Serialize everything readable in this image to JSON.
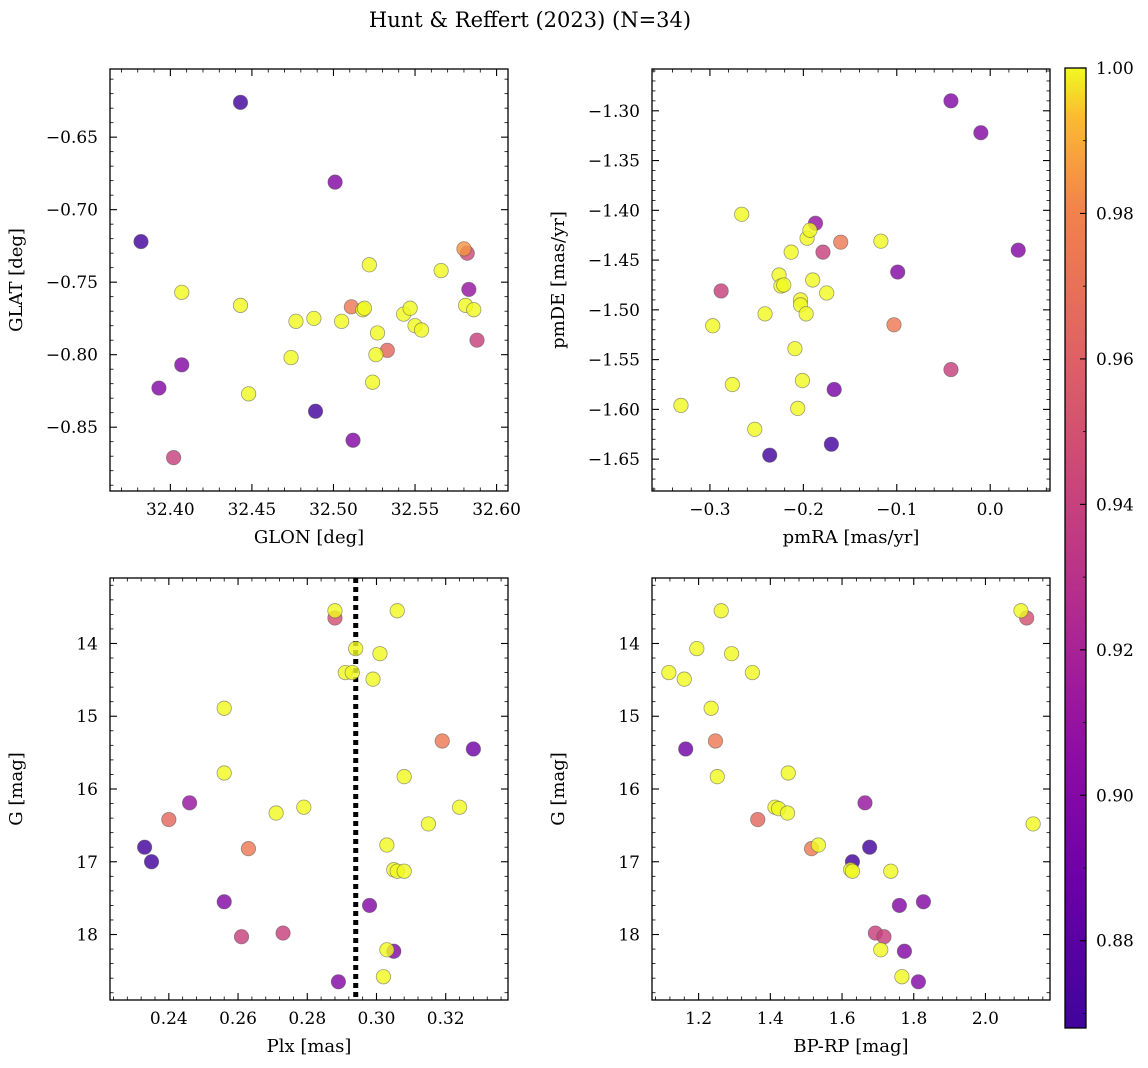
{
  "title": "Hunt & Reffert (2023) (N=34)",
  "colors": {
    "colormap": "plasma",
    "reference_line": "#000000"
  },
  "colorbar": {
    "min": 0.868,
    "max": 1.0,
    "ticks": [
      0.88,
      0.9,
      0.92,
      0.94,
      0.96,
      0.98,
      1.0
    ],
    "tick_labels": [
      "0.88",
      "0.90",
      "0.92",
      "0.94",
      "0.96",
      "0.98",
      "1.00"
    ]
  },
  "chart_data": [
    {
      "type": "scatter",
      "xlabel": "GLON [deg]",
      "ylabel": "GLAT [deg]",
      "xlim": [
        32.363,
        32.607
      ],
      "ylim": [
        -0.894,
        -0.603
      ],
      "invert_y": false,
      "xticks": [
        32.4,
        32.45,
        32.5,
        32.55,
        32.6
      ],
      "xtick_labels": [
        "32.40",
        "32.45",
        "32.50",
        "32.55",
        "32.60"
      ],
      "yticks": [
        -0.85,
        -0.8,
        -0.75,
        -0.7,
        -0.65
      ],
      "ytick_labels": [
        "−0.85",
        "−0.80",
        "−0.75",
        "−0.70",
        "−0.65"
      ],
      "points": [
        {
          "x": 32.443,
          "y": -0.626,
          "c": 0.87
        },
        {
          "x": 32.382,
          "y": -0.722,
          "c": 0.87
        },
        {
          "x": 32.489,
          "y": -0.839,
          "c": 0.87
        },
        {
          "x": 32.501,
          "y": -0.681,
          "c": 0.9
        },
        {
          "x": 32.393,
          "y": -0.823,
          "c": 0.9
        },
        {
          "x": 32.407,
          "y": -0.807,
          "c": 0.9
        },
        {
          "x": 32.512,
          "y": -0.859,
          "c": 0.9
        },
        {
          "x": 32.583,
          "y": -0.755,
          "c": 0.91
        },
        {
          "x": 32.402,
          "y": -0.871,
          "c": 0.94
        },
        {
          "x": 32.588,
          "y": -0.79,
          "c": 0.94
        },
        {
          "x": 32.582,
          "y": -0.73,
          "c": 0.945
        },
        {
          "x": 32.533,
          "y": -0.797,
          "c": 0.965
        },
        {
          "x": 32.511,
          "y": -0.767,
          "c": 0.975
        },
        {
          "x": 32.58,
          "y": -0.727,
          "c": 0.985
        },
        {
          "x": 32.407,
          "y": -0.757,
          "c": 1.0
        },
        {
          "x": 32.443,
          "y": -0.766,
          "c": 1.0
        },
        {
          "x": 32.448,
          "y": -0.827,
          "c": 1.0
        },
        {
          "x": 32.474,
          "y": -0.802,
          "c": 1.0
        },
        {
          "x": 32.477,
          "y": -0.777,
          "c": 1.0
        },
        {
          "x": 32.488,
          "y": -0.775,
          "c": 1.0
        },
        {
          "x": 32.505,
          "y": -0.777,
          "c": 1.0
        },
        {
          "x": 32.518,
          "y": -0.769,
          "c": 1.0
        },
        {
          "x": 32.519,
          "y": -0.768,
          "c": 1.0
        },
        {
          "x": 32.522,
          "y": -0.738,
          "c": 1.0
        },
        {
          "x": 32.524,
          "y": -0.819,
          "c": 1.0
        },
        {
          "x": 32.526,
          "y": -0.8,
          "c": 1.0
        },
        {
          "x": 32.527,
          "y": -0.785,
          "c": 1.0
        },
        {
          "x": 32.543,
          "y": -0.772,
          "c": 1.0
        },
        {
          "x": 32.547,
          "y": -0.768,
          "c": 1.0
        },
        {
          "x": 32.55,
          "y": -0.78,
          "c": 1.0
        },
        {
          "x": 32.554,
          "y": -0.783,
          "c": 1.0
        },
        {
          "x": 32.566,
          "y": -0.742,
          "c": 1.0
        },
        {
          "x": 32.581,
          "y": -0.766,
          "c": 1.0
        },
        {
          "x": 32.586,
          "y": -0.769,
          "c": 1.0
        }
      ]
    },
    {
      "type": "scatter",
      "xlabel": "pmRA [mas/yr]",
      "ylabel": "pmDE [mas/yr]",
      "xlim": [
        -0.362,
        0.064
      ],
      "ylim": [
        -1.682,
        -1.258
      ],
      "invert_y": false,
      "xticks": [
        -0.3,
        -0.2,
        -0.1,
        0.0
      ],
      "xtick_labels": [
        "−0.3",
        "−0.2",
        "−0.1",
        "0.0"
      ],
      "yticks": [
        -1.65,
        -1.6,
        -1.55,
        -1.5,
        -1.45,
        -1.4,
        -1.35,
        -1.3
      ],
      "ytick_labels": [
        "−1.65",
        "−1.60",
        "−1.55",
        "−1.50",
        "−1.45",
        "−1.40",
        "−1.35",
        "−1.30"
      ],
      "points": [
        {
          "x": -0.236,
          "y": -1.646,
          "c": 0.87
        },
        {
          "x": -0.17,
          "y": -1.635,
          "c": 0.87
        },
        {
          "x": -0.167,
          "y": -1.58,
          "c": 0.895
        },
        {
          "x": -0.042,
          "y": -1.29,
          "c": 0.9
        },
        {
          "x": -0.01,
          "y": -1.322,
          "c": 0.9
        },
        {
          "x": 0.03,
          "y": -1.44,
          "c": 0.9
        },
        {
          "x": -0.099,
          "y": -1.462,
          "c": 0.9
        },
        {
          "x": -0.187,
          "y": -1.413,
          "c": 0.91
        },
        {
          "x": -0.288,
          "y": -1.481,
          "c": 0.94
        },
        {
          "x": -0.179,
          "y": -1.442,
          "c": 0.94
        },
        {
          "x": -0.042,
          "y": -1.56,
          "c": 0.94
        },
        {
          "x": -0.16,
          "y": -1.432,
          "c": 0.975
        },
        {
          "x": -0.103,
          "y": -1.515,
          "c": 0.975
        },
        {
          "x": -0.331,
          "y": -1.596,
          "c": 1.0
        },
        {
          "x": -0.297,
          "y": -1.516,
          "c": 1.0
        },
        {
          "x": -0.276,
          "y": -1.575,
          "c": 1.0
        },
        {
          "x": -0.266,
          "y": -1.404,
          "c": 1.0
        },
        {
          "x": -0.252,
          "y": -1.62,
          "c": 1.0
        },
        {
          "x": -0.241,
          "y": -1.504,
          "c": 1.0
        },
        {
          "x": -0.226,
          "y": -1.465,
          "c": 1.0
        },
        {
          "x": -0.224,
          "y": -1.476,
          "c": 1.0
        },
        {
          "x": -0.221,
          "y": -1.475,
          "c": 1.0
        },
        {
          "x": -0.213,
          "y": -1.442,
          "c": 1.0
        },
        {
          "x": -0.209,
          "y": -1.539,
          "c": 1.0
        },
        {
          "x": -0.206,
          "y": -1.599,
          "c": 1.0
        },
        {
          "x": -0.203,
          "y": -1.49,
          "c": 1.0
        },
        {
          "x": -0.203,
          "y": -1.495,
          "c": 1.0
        },
        {
          "x": -0.201,
          "y": -1.571,
          "c": 1.0
        },
        {
          "x": -0.197,
          "y": -1.504,
          "c": 1.0
        },
        {
          "x": -0.196,
          "y": -1.428,
          "c": 1.0
        },
        {
          "x": -0.193,
          "y": -1.42,
          "c": 1.0
        },
        {
          "x": -0.19,
          "y": -1.47,
          "c": 1.0
        },
        {
          "x": -0.175,
          "y": -1.483,
          "c": 1.0
        },
        {
          "x": -0.117,
          "y": -1.431,
          "c": 1.0
        }
      ]
    },
    {
      "type": "scatter",
      "xlabel": "Plx [mas]",
      "ylabel": "G [mag]",
      "xlim": [
        0.223,
        0.338
      ],
      "ylim": [
        13.1,
        18.9
      ],
      "invert_y": true,
      "xticks": [
        0.24,
        0.26,
        0.28,
        0.3,
        0.32
      ],
      "xtick_labels": [
        "0.24",
        "0.26",
        "0.28",
        "0.30",
        "0.32"
      ],
      "yticks": [
        14,
        15,
        16,
        17,
        18
      ],
      "ytick_labels": [
        "14",
        "15",
        "16",
        "17",
        "18"
      ],
      "vline": {
        "x": 0.294,
        "style": "dotted"
      },
      "points": [
        {
          "x": 0.233,
          "y": 16.8,
          "c": 0.87
        },
        {
          "x": 0.235,
          "y": 17.0,
          "c": 0.87
        },
        {
          "x": 0.328,
          "y": 15.45,
          "c": 0.89
        },
        {
          "x": 0.246,
          "y": 16.19,
          "c": 0.91
        },
        {
          "x": 0.256,
          "y": 17.55,
          "c": 0.9
        },
        {
          "x": 0.298,
          "y": 17.6,
          "c": 0.9
        },
        {
          "x": 0.305,
          "y": 18.23,
          "c": 0.9
        },
        {
          "x": 0.289,
          "y": 18.65,
          "c": 0.9
        },
        {
          "x": 0.261,
          "y": 18.03,
          "c": 0.94
        },
        {
          "x": 0.273,
          "y": 17.98,
          "c": 0.94
        },
        {
          "x": 0.288,
          "y": 13.65,
          "c": 0.95
        },
        {
          "x": 0.24,
          "y": 16.42,
          "c": 0.965
        },
        {
          "x": 0.263,
          "y": 16.82,
          "c": 0.975
        },
        {
          "x": 0.319,
          "y": 15.34,
          "c": 0.975
        },
        {
          "x": 0.288,
          "y": 13.55,
          "c": 1.0
        },
        {
          "x": 0.306,
          "y": 13.55,
          "c": 1.0
        },
        {
          "x": 0.294,
          "y": 14.07,
          "c": 1.0
        },
        {
          "x": 0.301,
          "y": 14.14,
          "c": 1.0
        },
        {
          "x": 0.291,
          "y": 14.4,
          "c": 1.0
        },
        {
          "x": 0.293,
          "y": 14.4,
          "c": 1.0
        },
        {
          "x": 0.299,
          "y": 14.49,
          "c": 1.0
        },
        {
          "x": 0.256,
          "y": 14.89,
          "c": 1.0
        },
        {
          "x": 0.256,
          "y": 15.78,
          "c": 1.0
        },
        {
          "x": 0.308,
          "y": 15.83,
          "c": 1.0
        },
        {
          "x": 0.279,
          "y": 16.25,
          "c": 1.0
        },
        {
          "x": 0.324,
          "y": 16.25,
          "c": 1.0
        },
        {
          "x": 0.271,
          "y": 16.33,
          "c": 1.0
        },
        {
          "x": 0.315,
          "y": 16.48,
          "c": 1.0
        },
        {
          "x": 0.303,
          "y": 16.77,
          "c": 1.0
        },
        {
          "x": 0.305,
          "y": 17.11,
          "c": 1.0
        },
        {
          "x": 0.306,
          "y": 17.13,
          "c": 1.0
        },
        {
          "x": 0.308,
          "y": 17.13,
          "c": 1.0
        },
        {
          "x": 0.303,
          "y": 18.21,
          "c": 1.0
        },
        {
          "x": 0.302,
          "y": 18.58,
          "c": 1.0
        }
      ]
    },
    {
      "type": "scatter",
      "xlabel": "BP-RP [mag]",
      "ylabel": "G [mag]",
      "xlim": [
        1.07,
        2.18
      ],
      "ylim": [
        13.1,
        18.9
      ],
      "invert_y": true,
      "xticks": [
        1.2,
        1.4,
        1.6,
        1.8,
        2.0
      ],
      "xtick_labels": [
        "1.2",
        "1.4",
        "1.6",
        "1.8",
        "2.0"
      ],
      "yticks": [
        14,
        15,
        16,
        17,
        18
      ],
      "ytick_labels": [
        "14",
        "15",
        "16",
        "17",
        "18"
      ],
      "points": [
        {
          "x": 1.164,
          "y": 15.45,
          "c": 0.89
        },
        {
          "x": 1.629,
          "y": 17.0,
          "c": 0.87
        },
        {
          "x": 1.677,
          "y": 16.8,
          "c": 0.87
        },
        {
          "x": 1.664,
          "y": 16.19,
          "c": 0.91
        },
        {
          "x": 1.76,
          "y": 17.6,
          "c": 0.9
        },
        {
          "x": 1.827,
          "y": 17.55,
          "c": 0.9
        },
        {
          "x": 1.774,
          "y": 18.23,
          "c": 0.9
        },
        {
          "x": 1.813,
          "y": 18.65,
          "c": 0.9
        },
        {
          "x": 1.693,
          "y": 17.98,
          "c": 0.94
        },
        {
          "x": 1.717,
          "y": 18.03,
          "c": 0.94
        },
        {
          "x": 2.115,
          "y": 13.65,
          "c": 0.95
        },
        {
          "x": 1.365,
          "y": 16.42,
          "c": 0.965
        },
        {
          "x": 1.515,
          "y": 16.82,
          "c": 0.975
        },
        {
          "x": 1.247,
          "y": 15.34,
          "c": 0.975
        },
        {
          "x": 2.099,
          "y": 13.55,
          "c": 1.0
        },
        {
          "x": 1.263,
          "y": 13.55,
          "c": 1.0
        },
        {
          "x": 1.195,
          "y": 14.07,
          "c": 1.0
        },
        {
          "x": 1.292,
          "y": 14.14,
          "c": 1.0
        },
        {
          "x": 1.117,
          "y": 14.4,
          "c": 1.0
        },
        {
          "x": 1.35,
          "y": 14.4,
          "c": 1.0
        },
        {
          "x": 1.16,
          "y": 14.49,
          "c": 1.0
        },
        {
          "x": 1.235,
          "y": 14.89,
          "c": 1.0
        },
        {
          "x": 1.45,
          "y": 15.78,
          "c": 1.0
        },
        {
          "x": 1.252,
          "y": 15.83,
          "c": 1.0
        },
        {
          "x": 1.413,
          "y": 16.25,
          "c": 1.0
        },
        {
          "x": 1.423,
          "y": 16.27,
          "c": 1.0
        },
        {
          "x": 1.448,
          "y": 16.33,
          "c": 1.0
        },
        {
          "x": 2.133,
          "y": 16.48,
          "c": 1.0
        },
        {
          "x": 1.534,
          "y": 16.77,
          "c": 1.0
        },
        {
          "x": 1.624,
          "y": 17.11,
          "c": 1.0
        },
        {
          "x": 1.629,
          "y": 17.13,
          "c": 1.0
        },
        {
          "x": 1.736,
          "y": 17.13,
          "c": 1.0
        },
        {
          "x": 1.708,
          "y": 18.21,
          "c": 1.0
        },
        {
          "x": 1.767,
          "y": 18.58,
          "c": 1.0
        }
      ]
    }
  ]
}
